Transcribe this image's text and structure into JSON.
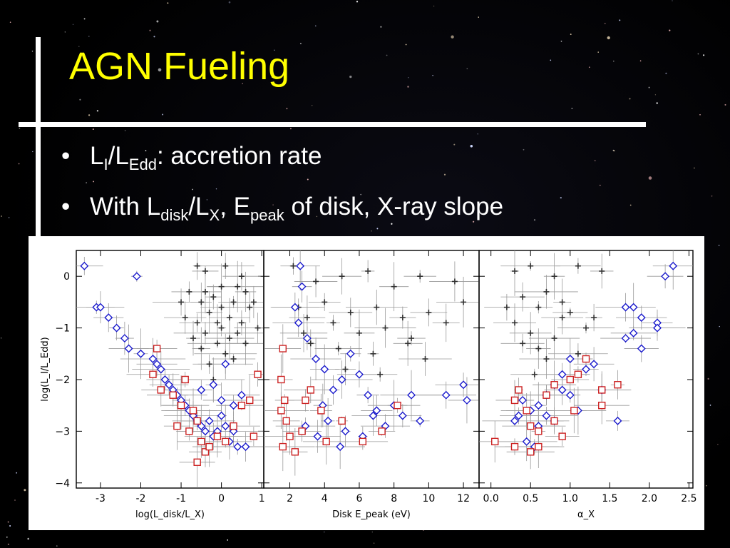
{
  "slide": {
    "title": "AGN Fueling",
    "bullets": [
      {
        "parts": [
          "L",
          "I",
          "/L",
          "Edd",
          ": accretion rate"
        ]
      },
      {
        "parts": [
          "With L",
          "disk",
          "/L",
          "X",
          ", E",
          "peak",
          " of disk, X-ray slope"
        ]
      }
    ]
  },
  "colors": {
    "title": "#ffff00",
    "text": "#ffffff",
    "black_series": "#333333",
    "blue_series": "#1a1acc",
    "red_series": "#cc2222",
    "errorbar": "#9a9a9a"
  },
  "chart_data": [
    {
      "type": "scatter",
      "xlabel": "log(L_disk/L_X)",
      "ylabel": "log(L_I/L_Edd)",
      "xlim": [
        -3.6,
        1.05
      ],
      "ylim": [
        -4.1,
        0.5
      ],
      "xticks": [
        "-3",
        "-2",
        "-1",
        "0",
        "1"
      ],
      "xtick_values": [
        -3,
        -2,
        -1,
        0,
        1
      ],
      "yticks": [
        "0",
        "−1",
        "−2",
        "−3",
        "−4"
      ],
      "ytick_values": [
        0,
        -1,
        -2,
        -3,
        -4
      ],
      "series": [
        {
          "marker": "plus",
          "points": [
            [
              -0.6,
              0.2
            ],
            [
              -0.4,
              0.1
            ],
            [
              0.1,
              0.2
            ],
            [
              0.5,
              0.0
            ],
            [
              -0.8,
              -0.3
            ],
            [
              -0.5,
              -0.5
            ],
            [
              -0.2,
              -0.4
            ],
            [
              0.0,
              -0.6
            ],
            [
              0.3,
              -0.5
            ],
            [
              0.6,
              -0.3
            ],
            [
              -0.9,
              -0.8
            ],
            [
              -0.6,
              -0.9
            ],
            [
              -0.3,
              -0.7
            ],
            [
              0.0,
              -1.0
            ],
            [
              0.2,
              -0.8
            ],
            [
              0.5,
              -0.9
            ],
            [
              0.7,
              -0.6
            ],
            [
              -0.7,
              -1.2
            ],
            [
              -0.4,
              -1.1
            ],
            [
              -0.1,
              -1.3
            ],
            [
              0.2,
              -1.2
            ],
            [
              0.4,
              -1.1
            ],
            [
              -0.5,
              -1.4
            ],
            [
              0.1,
              -1.5
            ],
            [
              0.6,
              -1.3
            ],
            [
              -0.3,
              -1.7
            ],
            [
              0.3,
              -1.6
            ],
            [
              -0.2,
              -2.0
            ],
            [
              0.0,
              -0.2
            ],
            [
              -0.1,
              -0.9
            ],
            [
              0.8,
              -0.5
            ],
            [
              0.9,
              -1.0
            ],
            [
              -1.0,
              -0.5
            ],
            [
              0.4,
              -0.2
            ],
            [
              -0.4,
              -0.3
            ]
          ]
        },
        {
          "marker": "diamond",
          "points": [
            [
              -3.4,
              0.2
            ],
            [
              -2.1,
              0.0
            ],
            [
              -3.1,
              -0.6
            ],
            [
              -3.0,
              -0.6
            ],
            [
              -2.8,
              -0.8
            ],
            [
              -2.6,
              -1.0
            ],
            [
              -2.4,
              -1.2
            ],
            [
              -2.3,
              -1.4
            ],
            [
              -2.0,
              -1.5
            ],
            [
              -1.7,
              -1.6
            ],
            [
              -1.6,
              -1.7
            ],
            [
              -1.5,
              -1.8
            ],
            [
              -1.4,
              -2.0
            ],
            [
              -1.3,
              -2.1
            ],
            [
              -1.2,
              -2.2
            ],
            [
              -1.1,
              -2.3
            ],
            [
              -1.0,
              -2.4
            ],
            [
              -0.9,
              -2.5
            ],
            [
              -0.8,
              -2.6
            ],
            [
              -0.7,
              -2.7
            ],
            [
              -0.6,
              -2.8
            ],
            [
              -0.5,
              -2.9
            ],
            [
              -0.4,
              -3.0
            ],
            [
              -0.3,
              -2.8
            ],
            [
              -0.2,
              -3.1
            ],
            [
              -0.1,
              -3.0
            ],
            [
              0.0,
              -2.7
            ],
            [
              0.1,
              -2.9
            ],
            [
              0.2,
              -3.2
            ],
            [
              0.3,
              -3.0
            ],
            [
              0.4,
              -3.3
            ],
            [
              0.6,
              -3.3
            ],
            [
              -0.5,
              -2.2
            ],
            [
              0.0,
              -2.4
            ],
            [
              0.3,
              -2.5
            ],
            [
              0.5,
              -2.3
            ],
            [
              -0.2,
              -2.1
            ],
            [
              0.1,
              -1.7
            ]
          ]
        },
        {
          "marker": "square",
          "points": [
            [
              -1.6,
              -1.4
            ],
            [
              -1.7,
              -1.9
            ],
            [
              -1.5,
              -2.2
            ],
            [
              -1.2,
              -2.3
            ],
            [
              -1.0,
              -2.5
            ],
            [
              -0.9,
              -2.0
            ],
            [
              -0.7,
              -2.6
            ],
            [
              -0.6,
              -2.8
            ],
            [
              -0.8,
              -3.0
            ],
            [
              -1.1,
              -2.9
            ],
            [
              -0.5,
              -3.2
            ],
            [
              -0.4,
              -3.4
            ],
            [
              -0.3,
              -3.3
            ],
            [
              -0.1,
              -3.1
            ],
            [
              0.1,
              -3.2
            ],
            [
              0.3,
              -2.9
            ],
            [
              0.5,
              -2.5
            ],
            [
              0.7,
              -2.4
            ],
            [
              0.8,
              -3.1
            ],
            [
              0.9,
              -1.9
            ],
            [
              -0.6,
              -3.6
            ]
          ]
        }
      ]
    },
    {
      "type": "scatter",
      "xlabel": "Disk E_peak (eV)",
      "ylabel": "",
      "xlim": [
        0.5,
        12.9
      ],
      "ylim": [
        -4.1,
        0.5
      ],
      "xticks": [
        "2",
        "4",
        "6",
        "8",
        "10",
        "12"
      ],
      "xtick_values": [
        2,
        4,
        6,
        8,
        10,
        12
      ],
      "series": [
        {
          "marker": "plus",
          "points": [
            [
              2.2,
              0.2
            ],
            [
              3.5,
              -0.1
            ],
            [
              5.0,
              0.0
            ],
            [
              6.5,
              0.1
            ],
            [
              8.0,
              -0.2
            ],
            [
              9.5,
              0.0
            ],
            [
              11.5,
              -0.1
            ],
            [
              2.5,
              -0.6
            ],
            [
              3.0,
              -0.8
            ],
            [
              4.0,
              -0.5
            ],
            [
              4.5,
              -0.9
            ],
            [
              5.5,
              -0.7
            ],
            [
              6.0,
              -1.1
            ],
            [
              7.0,
              -0.6
            ],
            [
              7.5,
              -1.0
            ],
            [
              8.5,
              -0.8
            ],
            [
              9.0,
              -1.2
            ],
            [
              10.0,
              -0.7
            ],
            [
              11.0,
              -0.9
            ],
            [
              3.2,
              -1.3
            ],
            [
              4.8,
              -1.4
            ],
            [
              6.8,
              -1.5
            ],
            [
              8.8,
              -1.3
            ],
            [
              5.2,
              -1.8
            ],
            [
              7.2,
              -1.9
            ],
            [
              9.8,
              -1.6
            ],
            [
              2.8,
              -1.1
            ],
            [
              12.0,
              -0.5
            ]
          ]
        },
        {
          "marker": "diamond",
          "points": [
            [
              2.6,
              0.2
            ],
            [
              2.7,
              -0.2
            ],
            [
              2.3,
              -0.6
            ],
            [
              2.5,
              -0.9
            ],
            [
              3.0,
              -1.2
            ],
            [
              3.5,
              -1.6
            ],
            [
              4.0,
              -1.8
            ],
            [
              4.5,
              -2.2
            ],
            [
              5.0,
              -2.0
            ],
            [
              5.5,
              -1.5
            ],
            [
              6.0,
              -1.9
            ],
            [
              6.5,
              -2.3
            ],
            [
              7.0,
              -2.6
            ],
            [
              7.5,
              -2.9
            ],
            [
              8.0,
              -2.5
            ],
            [
              8.5,
              -2.7
            ],
            [
              9.0,
              -2.3
            ],
            [
              9.5,
              -2.8
            ],
            [
              11.0,
              -2.3
            ],
            [
              12.0,
              -2.1
            ],
            [
              12.2,
              -2.4
            ],
            [
              4.2,
              -2.8
            ],
            [
              5.2,
              -3.0
            ],
            [
              6.2,
              -3.1
            ],
            [
              6.8,
              -2.7
            ],
            [
              3.6,
              -3.1
            ],
            [
              4.9,
              -3.3
            ],
            [
              3.9,
              -2.5
            ],
            [
              2.9,
              -2.9
            ]
          ]
        },
        {
          "marker": "square",
          "points": [
            [
              1.6,
              -1.4
            ],
            [
              1.5,
              -2.0
            ],
            [
              1.7,
              -2.4
            ],
            [
              1.5,
              -2.6
            ],
            [
              1.8,
              -2.8
            ],
            [
              2.0,
              -3.1
            ],
            [
              2.3,
              -3.4
            ],
            [
              2.7,
              -3.0
            ],
            [
              3.2,
              -2.2
            ],
            [
              3.8,
              -2.6
            ],
            [
              4.1,
              -3.2
            ],
            [
              1.6,
              -3.3
            ],
            [
              2.9,
              -2.4
            ],
            [
              6.2,
              -3.2
            ],
            [
              5.0,
              -2.8
            ],
            [
              8.2,
              -2.5
            ],
            [
              7.3,
              -3.0
            ]
          ]
        }
      ]
    },
    {
      "type": "scatter",
      "xlabel": "α_X",
      "ylabel": "",
      "xlim": [
        -0.15,
        2.55
      ],
      "ylim": [
        -4.1,
        0.5
      ],
      "xticks": [
        "0.0",
        "0.5",
        "1.0",
        "1.5",
        "2.0",
        "2.5"
      ],
      "xtick_values": [
        0,
        0.5,
        1.0,
        1.5,
        2.0,
        2.5
      ],
      "series": [
        {
          "marker": "plus",
          "points": [
            [
              0.3,
              0.1
            ],
            [
              0.5,
              0.2
            ],
            [
              0.8,
              0.0
            ],
            [
              1.1,
              0.2
            ],
            [
              1.4,
              0.1
            ],
            [
              0.4,
              -0.4
            ],
            [
              0.6,
              -0.6
            ],
            [
              0.7,
              -0.3
            ],
            [
              0.9,
              -0.8
            ],
            [
              0.3,
              -0.9
            ],
            [
              0.5,
              -1.1
            ],
            [
              0.8,
              -1.2
            ],
            [
              1.0,
              -0.7
            ],
            [
              1.2,
              -1.0
            ],
            [
              0.6,
              -1.4
            ],
            [
              0.4,
              -1.3
            ],
            [
              0.7,
              -1.6
            ],
            [
              1.1,
              -1.5
            ],
            [
              0.55,
              -1.9
            ],
            [
              0.9,
              -0.5
            ],
            [
              0.2,
              -0.6
            ],
            [
              1.3,
              -0.8
            ]
          ]
        },
        {
          "marker": "diamond",
          "points": [
            [
              2.3,
              0.2
            ],
            [
              2.2,
              0.0
            ],
            [
              1.7,
              -0.6
            ],
            [
              1.8,
              -0.6
            ],
            [
              1.9,
              -0.8
            ],
            [
              1.8,
              -1.1
            ],
            [
              1.7,
              -1.2
            ],
            [
              2.1,
              -0.9
            ],
            [
              1.9,
              -1.4
            ],
            [
              2.1,
              -1.0
            ],
            [
              1.6,
              -2.8
            ],
            [
              1.3,
              -1.7
            ],
            [
              1.2,
              -1.8
            ],
            [
              1.0,
              -1.6
            ],
            [
              0.9,
              -1.9
            ],
            [
              0.8,
              -2.1
            ],
            [
              0.7,
              -2.3
            ],
            [
              0.6,
              -2.5
            ],
            [
              0.5,
              -2.6
            ],
            [
              0.4,
              -2.4
            ],
            [
              0.3,
              -2.8
            ],
            [
              0.45,
              -3.2
            ],
            [
              0.55,
              -3.3
            ],
            [
              0.6,
              -2.9
            ],
            [
              0.7,
              -2.7
            ],
            [
              0.8,
              -2.8
            ],
            [
              0.9,
              -2.2
            ],
            [
              1.0,
              -2.3
            ],
            [
              1.1,
              -2.6
            ],
            [
              1.4,
              -2.2
            ],
            [
              0.35,
              -2.7
            ]
          ]
        },
        {
          "marker": "square",
          "points": [
            [
              0.05,
              -3.2
            ],
            [
              0.3,
              -3.3
            ],
            [
              0.5,
              -2.9
            ],
            [
              0.5,
              -3.4
            ],
            [
              0.6,
              -3.0
            ],
            [
              0.45,
              -2.6
            ],
            [
              0.3,
              -2.4
            ],
            [
              0.7,
              -2.3
            ],
            [
              0.8,
              -2.1
            ],
            [
              1.0,
              -2.0
            ],
            [
              1.1,
              -1.9
            ],
            [
              1.2,
              -1.6
            ],
            [
              1.4,
              -2.2
            ],
            [
              1.4,
              -2.5
            ],
            [
              1.6,
              -2.1
            ],
            [
              0.9,
              -3.1
            ],
            [
              0.8,
              -2.8
            ],
            [
              1.05,
              -2.6
            ],
            [
              0.35,
              -2.2
            ],
            [
              0.6,
              -3.3
            ]
          ]
        }
      ]
    }
  ]
}
